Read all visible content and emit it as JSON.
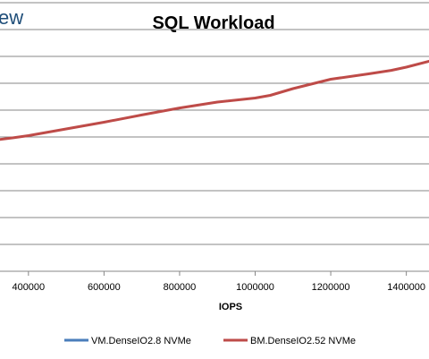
{
  "page": {
    "cut_title_fragment": "ew"
  },
  "chart_data": {
    "type": "line",
    "title": "SQL Workload",
    "xlabel": "IOPS",
    "ylabel": "",
    "xlim": [
      320000,
      1460000
    ],
    "ylim": [
      0,
      10
    ],
    "x_ticks": [
      400000,
      600000,
      800000,
      1000000,
      1200000,
      1400000
    ],
    "x_tick_labels": [
      "400000",
      "600000",
      "800000",
      "1000000",
      "1200000",
      "1400000"
    ],
    "y_gridlines": [
      1,
      2,
      3,
      4,
      5,
      6,
      7,
      8,
      9,
      10
    ],
    "grid": true,
    "legend_position": "bottom",
    "series": [
      {
        "name": "VM.DenseIO2.8 NVMe",
        "color": "#4a7ebb",
        "x": [],
        "y": []
      },
      {
        "name": "BM.DenseIO2.52 NVMe",
        "color": "#be4b48",
        "x": [
          320000,
          360000,
          400000,
          440000,
          500000,
          600000,
          700000,
          800000,
          900000,
          1000000,
          1040000,
          1100000,
          1200000,
          1300000,
          1360000,
          1400000,
          1460000
        ],
        "y": [
          4.9,
          4.97,
          5.05,
          5.15,
          5.3,
          5.55,
          5.82,
          6.08,
          6.3,
          6.45,
          6.55,
          6.8,
          7.15,
          7.35,
          7.48,
          7.6,
          7.82
        ]
      }
    ]
  }
}
